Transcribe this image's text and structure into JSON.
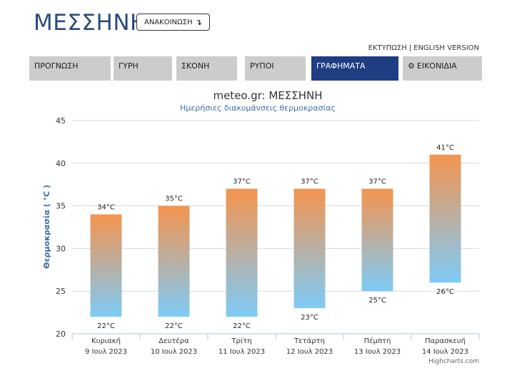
{
  "header": {
    "city": "ΜΕΣΣΗΝΗ",
    "announce_label": "ΑΝΑΚΟΙΝΩΣΗ",
    "announce_icon": "return-arrow-icon",
    "print_label": "ΕΚΤΥΠΩΣΗ",
    "separator": "|",
    "english_label": "ENGLISH VERSION"
  },
  "tabs": [
    {
      "label": "ΠΡΟΓΝΩΣΗ"
    },
    {
      "label": "ΓΥΡΗ"
    },
    {
      "label": "ΣΚΟΝΗ"
    },
    {
      "label": "ΡΥΠΟΙ"
    },
    {
      "label": "ΓΡΑΦΗΜΑΤΑ"
    },
    {
      "label": "ΕΙΚΟΝΙΔΙΑ",
      "icon": "gear-icon"
    }
  ],
  "colors": {
    "active_tab": "#1e3d82",
    "bar_top": "#f4944e",
    "bar_bottom": "#7ecbf7",
    "title": "#333333",
    "subtitle": "#3a6ea5"
  },
  "credit": "Highcharts.com",
  "chart_data": {
    "type": "columnrange",
    "title": "meteo.gr: ΜΕΣΣΗΝΗ",
    "subtitle": "Ημερήσιες διακυμάνσεις θερμοκρασίας",
    "ylabel": "Θερμοκρασία ( °C )",
    "ylim": [
      20,
      45
    ],
    "yticks": [
      20,
      25,
      30,
      35,
      40,
      45
    ],
    "grid": true,
    "legend": "none",
    "unit": "°C",
    "categories": [
      [
        "Κυριακή",
        "9 Ιουλ 2023"
      ],
      [
        "Δευτέρα",
        "10 Ιουλ 2023"
      ],
      [
        "Τρίτη",
        "11 Ιουλ 2023"
      ],
      [
        "Τετάρτη",
        "12 Ιουλ 2023"
      ],
      [
        "Πέμπτη",
        "13 Ιουλ 2023"
      ],
      [
        "Παρασκευή",
        "14 Ιουλ 2023"
      ]
    ],
    "low": [
      22,
      22,
      22,
      23,
      25,
      26
    ],
    "high": [
      34,
      35,
      37,
      37,
      37,
      41
    ]
  }
}
